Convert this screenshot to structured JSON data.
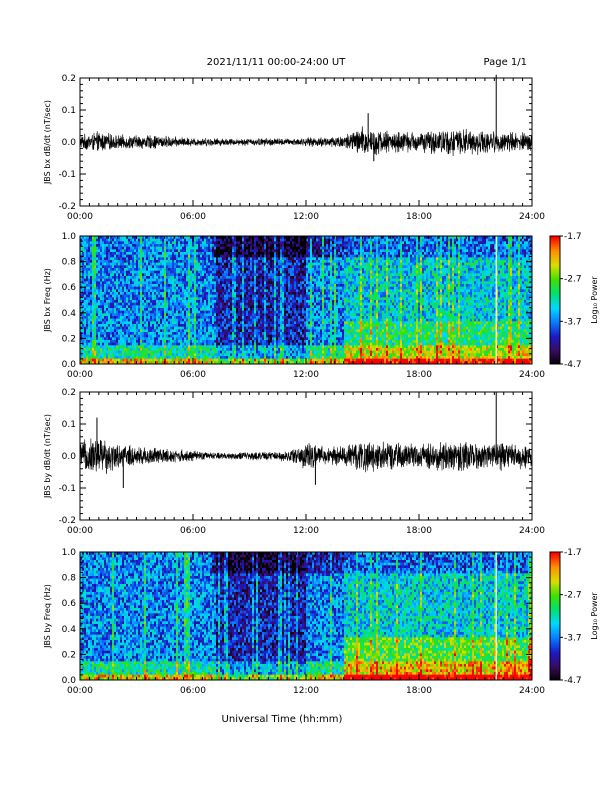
{
  "header": {
    "date_range": "2021/11/11  00:00-24:00 UT",
    "page": "Page 1/1"
  },
  "colors": {
    "trace": "#000000",
    "colormap": [
      "#000000",
      "#3a0a60",
      "#1a1ac8",
      "#0a7aff",
      "#00d8ff",
      "#00e070",
      "#40e000",
      "#d8e000",
      "#ff9000",
      "#ff0000"
    ]
  },
  "chart_data": [
    {
      "type": "line",
      "ylabel": "JBS bx dB/dt (nT/sec)",
      "ylim": [
        -0.2,
        0.2
      ],
      "y_ticks": [
        "0.2",
        "0.1",
        "0.0",
        "-0.1",
        "-0.2"
      ],
      "y_tick_values": [
        0.2,
        0.1,
        0.0,
        -0.1,
        -0.2
      ],
      "x_ticks": [
        "00:00",
        "06:00",
        "12:00",
        "18:00",
        "24:00"
      ],
      "xlim_hours": [
        0,
        24
      ],
      "envelope": {
        "hours": [
          0,
          1,
          2,
          3,
          4,
          5,
          6,
          7,
          8,
          9,
          10,
          11,
          12,
          13,
          14,
          15,
          16,
          17,
          18,
          19,
          20,
          21,
          22,
          23,
          24
        ],
        "amplitude": [
          0.02,
          0.03,
          0.02,
          0.02,
          0.02,
          0.015,
          0.012,
          0.012,
          0.01,
          0.01,
          0.012,
          0.01,
          0.012,
          0.015,
          0.02,
          0.045,
          0.035,
          0.03,
          0.03,
          0.035,
          0.04,
          0.035,
          0.03,
          0.03,
          0.025
        ]
      },
      "spikes": [
        {
          "hour": 22.1,
          "value": 0.21
        },
        {
          "hour": 15.3,
          "value": 0.09
        },
        {
          "hour": 15.6,
          "value": -0.06
        }
      ]
    },
    {
      "type": "heatmap",
      "ylabel": "JBS bx Freq (Hz)",
      "ylim": [
        0.0,
        1.0
      ],
      "y_ticks": [
        "1.0",
        "0.8",
        "0.6",
        "0.4",
        "0.2",
        "0.0"
      ],
      "y_tick_values": [
        1.0,
        0.8,
        0.6,
        0.4,
        0.2,
        0.0
      ],
      "x_ticks": [
        "00:00",
        "06:00",
        "12:00",
        "18:00",
        "24:00"
      ],
      "xlim_hours": [
        0,
        24
      ],
      "colorbar_label": "Log₁₀ Power",
      "colorbar_ticks": [
        "-1.7",
        "-2.7",
        "-3.7",
        "-4.7"
      ],
      "colorbar_range": [
        -4.7,
        -1.7
      ]
    },
    {
      "type": "line",
      "ylabel": "JBS by dB/dt (nT/sec)",
      "ylim": [
        -0.2,
        0.2
      ],
      "y_ticks": [
        "0.2",
        "0.1",
        "0.0",
        "-0.1",
        "-0.2"
      ],
      "y_tick_values": [
        0.2,
        0.1,
        0.0,
        -0.1,
        -0.2
      ],
      "x_ticks": [
        "00:00",
        "06:00",
        "12:00",
        "18:00",
        "24:00"
      ],
      "xlim_hours": [
        0,
        24
      ],
      "envelope": {
        "hours": [
          0,
          1,
          2,
          3,
          4,
          5,
          6,
          7,
          8,
          9,
          10,
          11,
          12,
          13,
          14,
          15,
          16,
          17,
          18,
          19,
          20,
          21,
          22,
          23,
          24
        ],
        "amplitude": [
          0.04,
          0.06,
          0.035,
          0.03,
          0.025,
          0.02,
          0.015,
          0.01,
          0.01,
          0.012,
          0.012,
          0.015,
          0.04,
          0.025,
          0.03,
          0.05,
          0.04,
          0.035,
          0.035,
          0.04,
          0.045,
          0.04,
          0.04,
          0.04,
          0.035
        ]
      },
      "spikes": [
        {
          "hour": 22.1,
          "value": 0.2
        },
        {
          "hour": 0.9,
          "value": 0.12
        },
        {
          "hour": 2.3,
          "value": -0.1
        },
        {
          "hour": 12.5,
          "value": -0.09
        }
      ]
    },
    {
      "type": "heatmap",
      "ylabel": "JBS by Freq (Hz)",
      "ylim": [
        0.0,
        1.0
      ],
      "y_ticks": [
        "1.0",
        "0.8",
        "0.6",
        "0.4",
        "0.2",
        "0.0"
      ],
      "y_tick_values": [
        1.0,
        0.8,
        0.6,
        0.4,
        0.2,
        0.0
      ],
      "x_ticks": [
        "00:00",
        "06:00",
        "12:00",
        "18:00",
        "24:00"
      ],
      "xlim_hours": [
        0,
        24
      ],
      "colorbar_label": "Log₁₀ Power",
      "colorbar_ticks": [
        "-1.7",
        "-2.7",
        "-3.7",
        "-4.7"
      ],
      "colorbar_range": [
        -4.7,
        -1.7
      ]
    }
  ],
  "xlabel": "Universal Time (hh:mm)"
}
